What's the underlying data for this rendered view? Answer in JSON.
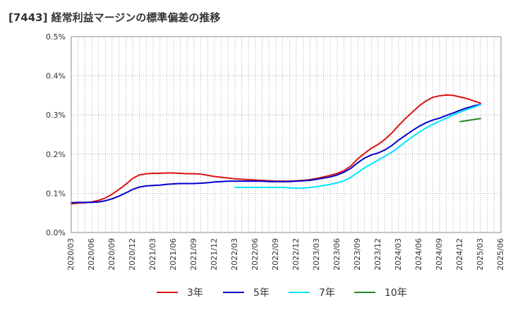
{
  "title": "[7443]  経常利益マージンの標準偏差の推移",
  "chart_data": {
    "type": "line",
    "title": "[7443]  経常利益マージンの標準偏差の推移",
    "xlabel": "",
    "ylabel": "",
    "ylim": [
      0,
      0.5
    ],
    "yticks": [
      "0.0%",
      "0.1%",
      "0.2%",
      "0.3%",
      "0.4%",
      "0.5%"
    ],
    "xticks": [
      "2020/03",
      "2020/06",
      "2020/09",
      "2020/12",
      "2021/03",
      "2021/06",
      "2021/09",
      "2021/12",
      "2022/03",
      "2022/06",
      "2022/09",
      "2022/12",
      "2023/03",
      "2023/06",
      "2023/09",
      "2023/12",
      "2024/03",
      "2024/06",
      "2024/09",
      "2024/12",
      "2025/03",
      "2025/06"
    ],
    "grid": true,
    "legend_position": "bottom",
    "x_units": "months since 2020/03",
    "series": [
      {
        "name": "3年",
        "color": "#dd1111",
        "points": [
          [
            0,
            0.073
          ],
          [
            1,
            0.075
          ],
          [
            2,
            0.076
          ],
          [
            3,
            0.078
          ],
          [
            4,
            0.082
          ],
          [
            5,
            0.088
          ],
          [
            6,
            0.098
          ],
          [
            7,
            0.11
          ],
          [
            8,
            0.123
          ],
          [
            9,
            0.138
          ],
          [
            10,
            0.147
          ],
          [
            11,
            0.15
          ],
          [
            12,
            0.151
          ],
          [
            13,
            0.151
          ],
          [
            14,
            0.152
          ],
          [
            15,
            0.152
          ],
          [
            16,
            0.151
          ],
          [
            17,
            0.15
          ],
          [
            18,
            0.15
          ],
          [
            19,
            0.149
          ],
          [
            20,
            0.146
          ],
          [
            21,
            0.143
          ],
          [
            22,
            0.141
          ],
          [
            23,
            0.139
          ],
          [
            24,
            0.137
          ],
          [
            25,
            0.136
          ],
          [
            26,
            0.135
          ],
          [
            27,
            0.134
          ],
          [
            28,
            0.133
          ],
          [
            29,
            0.132
          ],
          [
            30,
            0.131
          ],
          [
            31,
            0.131
          ],
          [
            32,
            0.131
          ],
          [
            33,
            0.132
          ],
          [
            34,
            0.133
          ],
          [
            35,
            0.135
          ],
          [
            36,
            0.138
          ],
          [
            37,
            0.142
          ],
          [
            38,
            0.146
          ],
          [
            39,
            0.151
          ],
          [
            40,
            0.158
          ],
          [
            41,
            0.17
          ],
          [
            42,
            0.188
          ],
          [
            43,
            0.202
          ],
          [
            44,
            0.215
          ],
          [
            45,
            0.225
          ],
          [
            46,
            0.238
          ],
          [
            47,
            0.254
          ],
          [
            48,
            0.273
          ],
          [
            49,
            0.291
          ],
          [
            50,
            0.307
          ],
          [
            51,
            0.323
          ],
          [
            52,
            0.336
          ],
          [
            53,
            0.345
          ],
          [
            54,
            0.349
          ],
          [
            55,
            0.351
          ],
          [
            56,
            0.35
          ],
          [
            57,
            0.346
          ],
          [
            58,
            0.342
          ],
          [
            59,
            0.336
          ],
          [
            60,
            0.33
          ]
        ]
      },
      {
        "name": "5年",
        "color": "#0000cc",
        "points": [
          [
            0,
            0.076
          ],
          [
            1,
            0.077
          ],
          [
            2,
            0.077
          ],
          [
            3,
            0.077
          ],
          [
            4,
            0.078
          ],
          [
            5,
            0.081
          ],
          [
            6,
            0.086
          ],
          [
            7,
            0.093
          ],
          [
            8,
            0.101
          ],
          [
            9,
            0.11
          ],
          [
            10,
            0.116
          ],
          [
            11,
            0.119
          ],
          [
            12,
            0.12
          ],
          [
            13,
            0.121
          ],
          [
            14,
            0.123
          ],
          [
            15,
            0.124
          ],
          [
            16,
            0.125
          ],
          [
            17,
            0.125
          ],
          [
            18,
            0.125
          ],
          [
            19,
            0.126
          ],
          [
            20,
            0.127
          ],
          [
            21,
            0.129
          ],
          [
            22,
            0.13
          ],
          [
            23,
            0.131
          ],
          [
            24,
            0.131
          ],
          [
            25,
            0.131
          ],
          [
            26,
            0.131
          ],
          [
            27,
            0.131
          ],
          [
            28,
            0.131
          ],
          [
            29,
            0.13
          ],
          [
            30,
            0.13
          ],
          [
            31,
            0.13
          ],
          [
            32,
            0.13
          ],
          [
            33,
            0.131
          ],
          [
            34,
            0.132
          ],
          [
            35,
            0.133
          ],
          [
            36,
            0.136
          ],
          [
            37,
            0.139
          ],
          [
            38,
            0.142
          ],
          [
            39,
            0.147
          ],
          [
            40,
            0.154
          ],
          [
            41,
            0.164
          ],
          [
            42,
            0.178
          ],
          [
            43,
            0.19
          ],
          [
            44,
            0.198
          ],
          [
            45,
            0.203
          ],
          [
            46,
            0.211
          ],
          [
            47,
            0.222
          ],
          [
            48,
            0.236
          ],
          [
            49,
            0.248
          ],
          [
            50,
            0.26
          ],
          [
            51,
            0.271
          ],
          [
            52,
            0.28
          ],
          [
            53,
            0.287
          ],
          [
            54,
            0.292
          ],
          [
            55,
            0.299
          ],
          [
            56,
            0.305
          ],
          [
            57,
            0.312
          ],
          [
            58,
            0.318
          ],
          [
            59,
            0.323
          ],
          [
            60,
            0.327
          ]
        ]
      },
      {
        "name": "7年",
        "color": "#00e5ff",
        "points": [
          [
            24,
            0.115
          ],
          [
            25,
            0.115
          ],
          [
            26,
            0.115
          ],
          [
            27,
            0.115
          ],
          [
            28,
            0.115
          ],
          [
            29,
            0.115
          ],
          [
            30,
            0.115
          ],
          [
            31,
            0.115
          ],
          [
            32,
            0.114
          ],
          [
            33,
            0.113
          ],
          [
            34,
            0.113
          ],
          [
            35,
            0.115
          ],
          [
            36,
            0.117
          ],
          [
            37,
            0.12
          ],
          [
            38,
            0.123
          ],
          [
            39,
            0.127
          ],
          [
            40,
            0.132
          ],
          [
            41,
            0.141
          ],
          [
            42,
            0.153
          ],
          [
            43,
            0.165
          ],
          [
            44,
            0.175
          ],
          [
            45,
            0.185
          ],
          [
            46,
            0.195
          ],
          [
            47,
            0.205
          ],
          [
            48,
            0.218
          ],
          [
            49,
            0.231
          ],
          [
            50,
            0.244
          ],
          [
            51,
            0.256
          ],
          [
            52,
            0.267
          ],
          [
            53,
            0.276
          ],
          [
            54,
            0.284
          ],
          [
            55,
            0.292
          ],
          [
            56,
            0.3
          ],
          [
            57,
            0.307
          ],
          [
            58,
            0.314
          ],
          [
            59,
            0.32
          ],
          [
            60,
            0.326
          ]
        ]
      },
      {
        "name": "10年",
        "color": "#228822",
        "points": [
          [
            57,
            0.283
          ],
          [
            60,
            0.291
          ]
        ]
      }
    ]
  }
}
